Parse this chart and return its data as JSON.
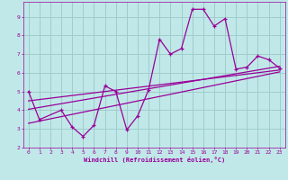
{
  "background_color": "#c0e8e8",
  "grid_color": "#a0cccc",
  "line_color": "#990099",
  "xlabel": "Windchill (Refroidissement éolien,°C)",
  "xlim": [
    -0.5,
    23.5
  ],
  "ylim": [
    2,
    9.8
  ],
  "yticks": [
    2,
    3,
    4,
    5,
    6,
    7,
    8,
    9
  ],
  "xticks": [
    0,
    1,
    2,
    3,
    4,
    5,
    6,
    7,
    8,
    9,
    10,
    11,
    12,
    13,
    14,
    15,
    16,
    17,
    18,
    19,
    20,
    21,
    22,
    23
  ],
  "main_x": [
    0,
    1,
    3,
    4,
    5,
    6,
    7,
    8,
    9,
    10,
    11,
    12,
    13,
    14,
    15,
    16,
    17,
    18,
    19,
    20,
    21,
    22,
    23
  ],
  "main_y": [
    5.0,
    3.5,
    4.0,
    3.1,
    2.6,
    3.2,
    5.3,
    5.0,
    2.95,
    3.7,
    5.1,
    7.8,
    7.0,
    7.3,
    9.4,
    9.4,
    8.5,
    8.9,
    6.2,
    6.3,
    6.9,
    6.7,
    6.25
  ],
  "trend1_x": [
    0,
    23
  ],
  "trend1_y": [
    3.3,
    6.05
  ],
  "trend2_x": [
    0,
    23
  ],
  "trend2_y": [
    4.05,
    6.35
  ],
  "trend3_x": [
    0,
    23
  ],
  "trend3_y": [
    4.5,
    6.15
  ]
}
